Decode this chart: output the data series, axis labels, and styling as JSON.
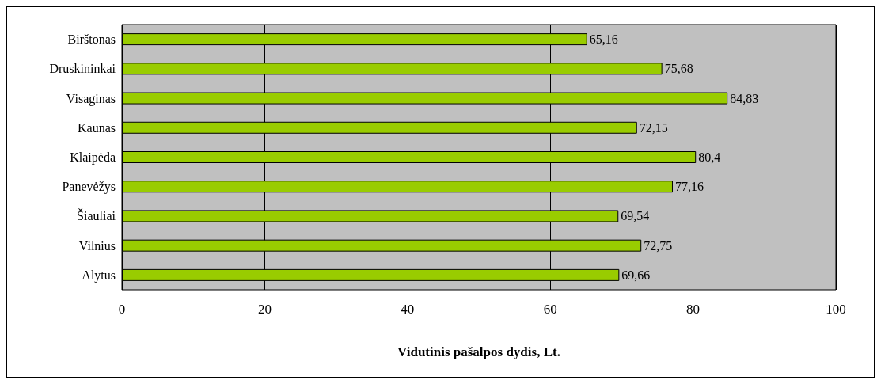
{
  "chart_data": {
    "type": "bar",
    "orientation": "horizontal",
    "xlabel": "Vidutinis pašalpos dydis, Lt.",
    "categories": [
      "Birštonas",
      "Druskininkai",
      "Visaginas",
      "Kaunas",
      "Klaipėda",
      "Panevėžys",
      "Šiauliai",
      "Vilnius",
      "Alytus"
    ],
    "values": [
      65.16,
      75.68,
      84.83,
      72.15,
      80.4,
      77.16,
      69.54,
      72.75,
      69.66
    ],
    "value_labels": [
      "65,16",
      "75,68",
      "84,83",
      "72,15",
      "80,4",
      "77,16",
      "69,54",
      "72,75",
      "69,66"
    ],
    "color": "#99cc00",
    "xlim": [
      0,
      100
    ],
    "xticks": [
      0,
      20,
      40,
      60,
      80,
      100
    ],
    "grid": "x"
  }
}
